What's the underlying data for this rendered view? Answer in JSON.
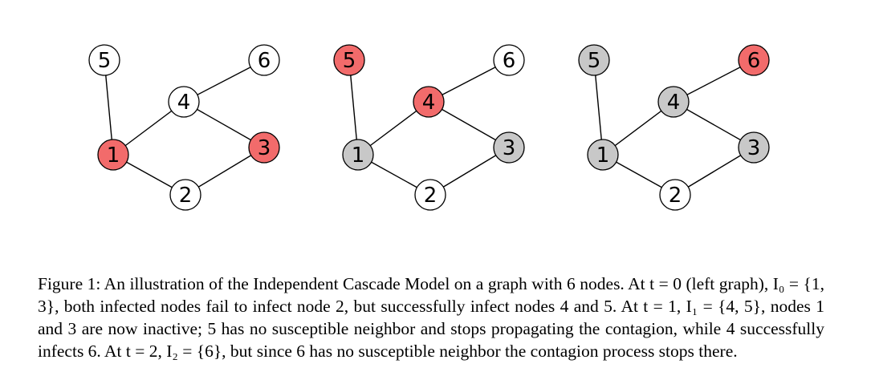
{
  "colors": {
    "infected": "#f26b6b",
    "inactive": "#c8c8c8",
    "susceptible": "#ffffff"
  },
  "figure": {
    "edges": [
      [
        5,
        1
      ],
      [
        1,
        4
      ],
      [
        1,
        2
      ],
      [
        4,
        6
      ],
      [
        4,
        3
      ],
      [
        2,
        3
      ]
    ],
    "panels": [
      {
        "id": "t0",
        "states": {
          "1": "infected",
          "2": "susceptible",
          "3": "infected",
          "4": "susceptible",
          "5": "susceptible",
          "6": "susceptible"
        }
      },
      {
        "id": "t1",
        "states": {
          "1": "inactive",
          "2": "susceptible",
          "3": "inactive",
          "4": "infected",
          "5": "infected",
          "6": "susceptible"
        }
      },
      {
        "id": "t2",
        "states": {
          "1": "inactive",
          "2": "susceptible",
          "3": "inactive",
          "4": "inactive",
          "5": "inactive",
          "6": "infected"
        }
      }
    ]
  },
  "caption": {
    "text": "Figure 1: An illustration of the Independent Cascade Model on a graph with 6 nodes. At t = 0 (left graph), I₀ = {1, 3}, both infected nodes fail to infect node 2, but successfully infect nodes 4 and 5. At t = 1, I₁ = {4, 5}, nodes 1 and 3 are now inactive; 5 has no susceptible neighbor and stops propagating the contagion, while 4 successfully infects 6. At t = 2, I₂ = {6}, but since 6 has no susceptible neighbor the contagion process stops there."
  }
}
